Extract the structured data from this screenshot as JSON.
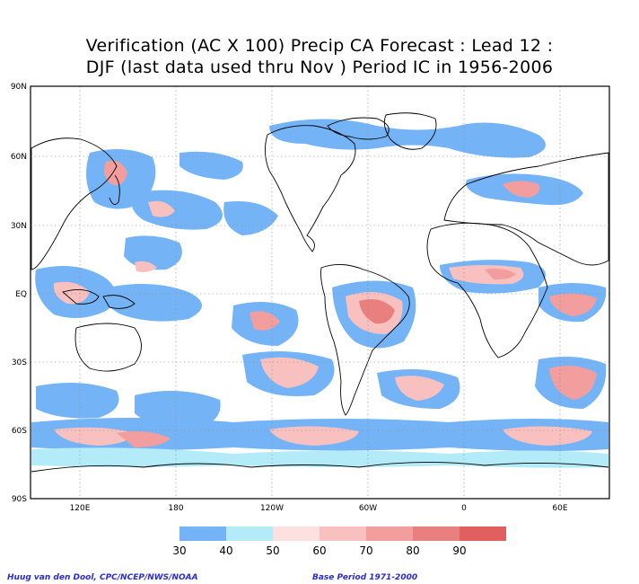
{
  "title": {
    "line1": "Verification (AC X 100) Precip CA Forecast : Lead 12 :",
    "line2": "DJF (last data used thru Nov ) Period IC in 1956-2006"
  },
  "map": {
    "lat_labels": [
      "90N",
      "60N",
      "30N",
      "EQ",
      "30S",
      "60S",
      "90S"
    ],
    "lon_labels": [
      "120E",
      "180",
      "120W",
      "60W",
      "0",
      "60E"
    ]
  },
  "colorbar": {
    "labels": [
      "30",
      "40",
      "50",
      "60",
      "70",
      "80",
      "90"
    ],
    "colors": [
      "#74b4f6",
      "#b3ecf8",
      "#fde0e0",
      "#f9c0c0",
      "#f29e9e",
      "#ea7f7f",
      "#e06060"
    ]
  },
  "footer": {
    "credit": "Huug van den Dool, CPC/NCEP/NWS/NOAA",
    "base_period": "Base Period 1971-2000"
  }
}
